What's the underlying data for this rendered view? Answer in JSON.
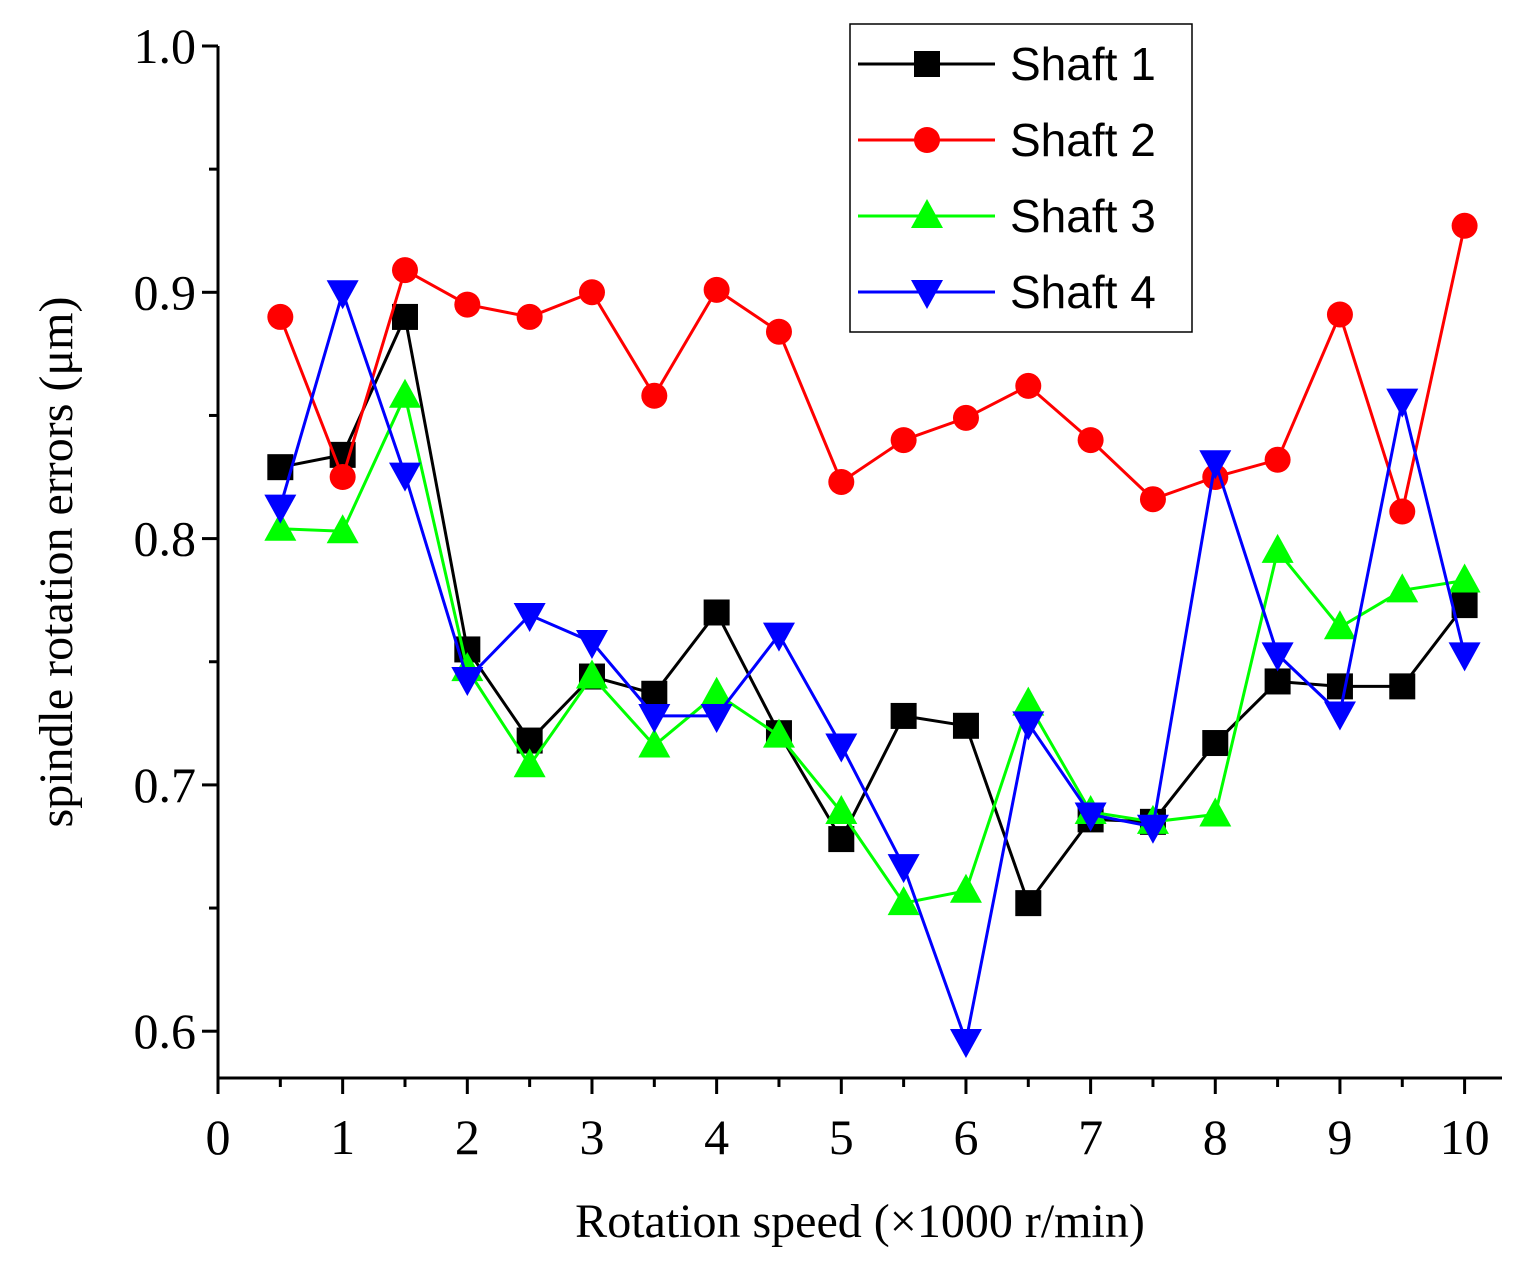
{
  "chart_data": {
    "type": "line",
    "xlabel": "Rotation speed (×1000 r/min)",
    "ylabel": "spindle rotation errors (μm)",
    "xlim": [
      0,
      10.3
    ],
    "ylim": [
      0.581,
      1.0
    ],
    "x_ticks": [
      0,
      1,
      2,
      3,
      4,
      5,
      6,
      7,
      8,
      9,
      10
    ],
    "x_minor_ticks": [
      0.5,
      1.5,
      2.5,
      3.5,
      4.5,
      5.5,
      6.5,
      7.5,
      8.5,
      9.5
    ],
    "x_tick_labels": [
      "0",
      "1",
      "2",
      "3",
      "4",
      "5",
      "6",
      "7",
      "8",
      "9",
      "10"
    ],
    "y_ticks": [
      0.6,
      0.7,
      0.8,
      0.9,
      1.0
    ],
    "y_minor_ticks": [
      0.65,
      0.75,
      0.85,
      0.95
    ],
    "y_tick_labels": [
      "0.6",
      "0.7",
      "0.8",
      "0.9",
      "1.0"
    ],
    "legend_position": "top-right",
    "x": [
      0.5,
      1,
      1.5,
      2,
      2.5,
      3,
      3.5,
      4,
      4.5,
      5,
      5.5,
      6,
      6.5,
      7,
      7.5,
      8,
      8.5,
      9,
      9.5,
      10
    ],
    "series": [
      {
        "name": "Shaft 1",
        "color": "#000000",
        "marker": "square",
        "values": [
          0.829,
          0.834,
          0.89,
          0.755,
          0.718,
          0.744,
          0.737,
          0.77,
          0.721,
          0.678,
          0.728,
          0.724,
          0.652,
          0.686,
          0.685,
          0.717,
          0.742,
          0.74,
          0.74,
          0.773
        ]
      },
      {
        "name": "Shaft 2",
        "color": "#ff0000",
        "marker": "circle",
        "values": [
          0.89,
          0.825,
          0.909,
          0.895,
          0.89,
          0.9,
          0.858,
          0.901,
          0.884,
          0.823,
          0.84,
          0.849,
          0.862,
          0.84,
          0.816,
          0.825,
          0.832,
          0.891,
          0.811,
          0.927
        ]
      },
      {
        "name": "Shaft 3",
        "color": "#00ff00",
        "marker": "triangle-up",
        "values": [
          0.804,
          0.803,
          0.858,
          0.747,
          0.708,
          0.744,
          0.716,
          0.737,
          0.72,
          0.689,
          0.652,
          0.657,
          0.733,
          0.689,
          0.685,
          0.688,
          0.795,
          0.764,
          0.779,
          0.783
        ]
      },
      {
        "name": "Shaft 4",
        "color": "#0000ff",
        "marker": "triangle-down",
        "values": [
          0.813,
          0.9,
          0.826,
          0.743,
          0.769,
          0.758,
          0.728,
          0.728,
          0.761,
          0.716,
          0.667,
          0.596,
          0.725,
          0.688,
          0.683,
          0.831,
          0.753,
          0.729,
          0.856,
          0.753
        ]
      }
    ]
  }
}
